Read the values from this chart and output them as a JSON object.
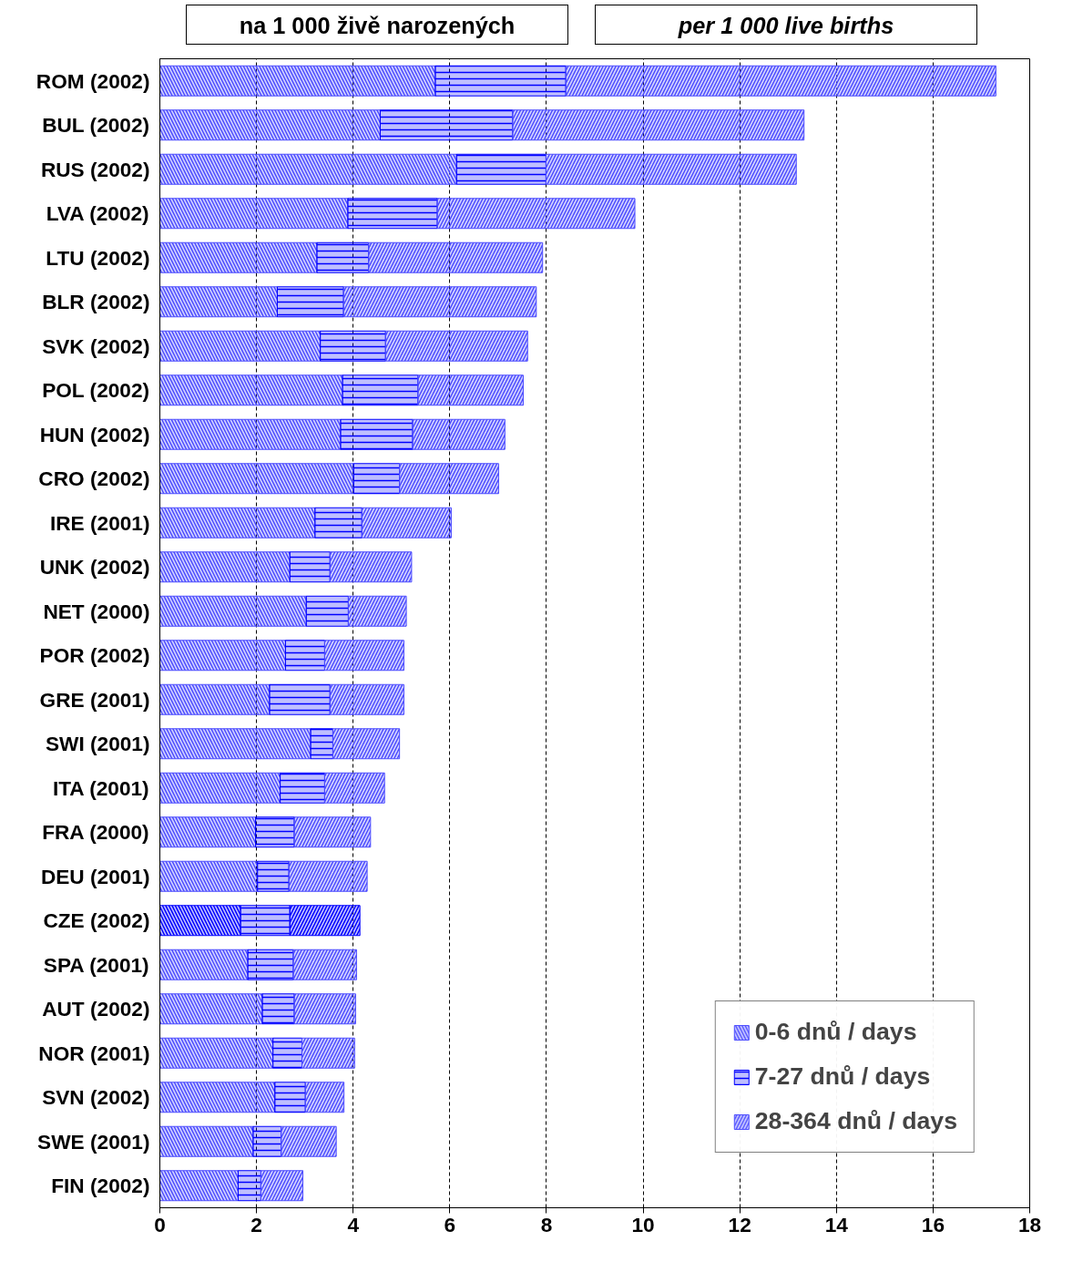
{
  "chart_data": {
    "type": "bar",
    "orientation": "horizontal",
    "stacked": true,
    "annotations": [
      "na 1 000 živě narozených",
      "per 1 000 live births"
    ],
    "categories": [
      "ROM (2002)",
      "BUL (2002)",
      "RUS (2002)",
      "LVA (2002)",
      "LTU (2002)",
      "BLR (2002)",
      "SVK (2002)",
      "POL (2002)",
      "HUN (2002)",
      "CRO (2002)",
      "IRE (2001)",
      "UNK (2002)",
      "NET (2000)",
      "POR (2002)",
      "GRE (2001)",
      "SWI (2001)",
      "ITA (2001)",
      "FRA (2000)",
      "DEU (2001)",
      "CZE (2002)",
      "SPA (2001)",
      "AUT (2002)",
      "NOR (2001)",
      "SVN (2002)",
      "SWE (2001)",
      "FIN (2002)"
    ],
    "series": [
      {
        "name": "0-6 dnů / days",
        "color": "#4d4dff",
        "colors": [
          "#4d4dff",
          "#4d4dff",
          "#4d4dff",
          "#4d4dff",
          "#4d4dff",
          "#4d4dff",
          "#4d4dff",
          "#4d4dff",
          "#4d4dff",
          "#4d4dff",
          "#4d4dff",
          "#4d4dff",
          "#4d4dff",
          "#4d4dff",
          "#4d4dff",
          "#4d4dff",
          "#4d4dff",
          "#4d4dff",
          "#4d4dff",
          "#0000ff",
          "#4d4dff",
          "#4d4dff",
          "#4d4dff",
          "#4d4dff",
          "#4d4dff",
          "#4d4dff"
        ],
        "values": [
          5.7,
          4.56,
          6.14,
          3.89,
          3.25,
          2.43,
          3.32,
          3.78,
          3.74,
          4.01,
          3.21,
          2.69,
          3.03,
          2.6,
          2.27,
          3.12,
          2.49,
          1.98,
          2.02,
          1.67,
          1.82,
          2.12,
          2.34,
          2.38,
          1.93,
          1.62
        ]
      },
      {
        "name": "7-27 dnů / days",
        "color": "#0000ff",
        "values": [
          2.7,
          2.74,
          1.85,
          1.85,
          1.07,
          1.37,
          1.35,
          1.56,
          1.49,
          0.95,
          0.97,
          0.83,
          0.87,
          0.81,
          1.25,
          0.46,
          0.92,
          0.8,
          0.65,
          1.02,
          0.94,
          0.66,
          0.6,
          0.63,
          0.58,
          0.47
        ]
      },
      {
        "name": "28-364 dnů / days",
        "color": "#4d4dff",
        "colors": [
          "#4d4dff",
          "#4d4dff",
          "#4d4dff",
          "#4d4dff",
          "#4d4dff",
          "#4d4dff",
          "#4d4dff",
          "#4d4dff",
          "#4d4dff",
          "#4d4dff",
          "#4d4dff",
          "#4d4dff",
          "#4d4dff",
          "#4d4dff",
          "#4d4dff",
          "#4d4dff",
          "#4d4dff",
          "#4d4dff",
          "#4d4dff",
          "#0000ff",
          "#4d4dff",
          "#4d4dff",
          "#4d4dff",
          "#4d4dff",
          "#4d4dff",
          "#4d4dff"
        ],
        "values": [
          8.9,
          6.03,
          5.18,
          4.09,
          3.6,
          3.99,
          2.94,
          2.18,
          1.91,
          2.05,
          1.85,
          1.69,
          1.2,
          1.64,
          1.53,
          1.38,
          1.24,
          1.58,
          1.62,
          1.45,
          1.31,
          1.27,
          1.09,
          0.8,
          1.14,
          0.87
        ]
      }
    ],
    "xlim": [
      0,
      18
    ],
    "xticks": [
      0,
      2,
      4,
      6,
      8,
      10,
      12,
      14,
      16,
      18
    ],
    "grid": "x",
    "legend": "bottom right"
  }
}
